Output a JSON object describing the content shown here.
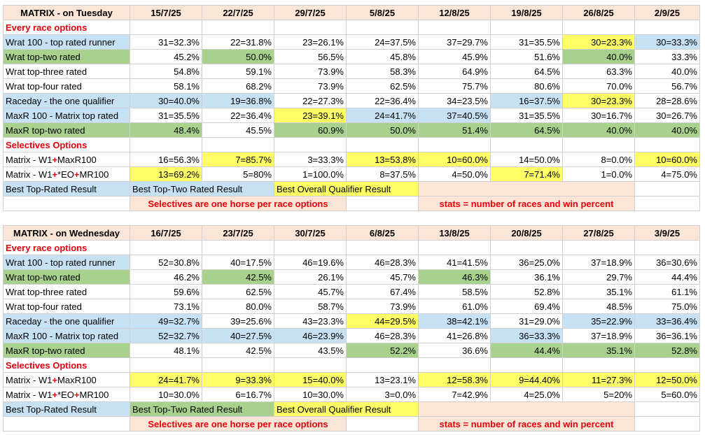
{
  "tables": [
    {
      "title": "MATRIX - on Tuesday",
      "dates": [
        "15/7/25",
        "22/7/25",
        "29/7/25",
        "5/8/25",
        "12/8/25",
        "19/8/25",
        "26/8/25",
        "2/9/25"
      ],
      "section1": "Every race options",
      "rows1": [
        {
          "label": "Wrat 100 - top rated runner",
          "labelColor": "blue",
          "cells": [
            [
              "31=32.3%",
              ""
            ],
            [
              "22=31.8%",
              ""
            ],
            [
              "23=26.1%",
              ""
            ],
            [
              "24=37.5%",
              ""
            ],
            [
              "37=29.7%",
              ""
            ],
            [
              "31=35.5%",
              ""
            ],
            [
              "30=23.3%",
              "yellow"
            ],
            [
              "30=33.3%",
              "blue"
            ]
          ]
        },
        {
          "label": "Wrat top-two rated",
          "labelColor": "green",
          "cells": [
            [
              "45.2%",
              ""
            ],
            [
              "50.0%",
              "green"
            ],
            [
              "56.5%",
              ""
            ],
            [
              "45.8%",
              ""
            ],
            [
              "45.9%",
              ""
            ],
            [
              "51.6%",
              ""
            ],
            [
              "40.0%",
              "green"
            ],
            [
              "33.3%",
              ""
            ]
          ]
        },
        {
          "label": "Wrat top-three rated",
          "labelColor": "",
          "cells": [
            [
              "54.8%",
              ""
            ],
            [
              "59.1%",
              ""
            ],
            [
              "73.9%",
              ""
            ],
            [
              "58.3%",
              ""
            ],
            [
              "64.9%",
              ""
            ],
            [
              "64.5%",
              ""
            ],
            [
              "63.3%",
              ""
            ],
            [
              "40.0%",
              ""
            ]
          ]
        },
        {
          "label": "Wrat top-four rated",
          "labelColor": "",
          "cells": [
            [
              "58.1%",
              ""
            ],
            [
              "68.2%",
              ""
            ],
            [
              "73.9%",
              ""
            ],
            [
              "62.5%",
              ""
            ],
            [
              "75.7%",
              ""
            ],
            [
              "80.6%",
              ""
            ],
            [
              "70.0%",
              ""
            ],
            [
              "56.7%",
              ""
            ]
          ]
        },
        {
          "label": "Raceday - the one qualifier",
          "labelColor": "blue",
          "cells": [
            [
              "30=40.0%",
              "blue"
            ],
            [
              "19=36.8%",
              "blue"
            ],
            [
              "22=27.3%",
              ""
            ],
            [
              "22=36.4%",
              ""
            ],
            [
              "34=23.5%",
              ""
            ],
            [
              "16=37.5%",
              "blue"
            ],
            [
              "30=23.3%",
              "yellow"
            ],
            [
              "28=28.6%",
              ""
            ]
          ]
        },
        {
          "label": "MaxR 100 - Matrix top rated",
          "labelColor": "blue",
          "cells": [
            [
              "31=35.5%",
              ""
            ],
            [
              "22=36.4%",
              ""
            ],
            [
              "23=39.1%",
              "yellow"
            ],
            [
              "24=41.7%",
              "blue"
            ],
            [
              "37=40.5%",
              "blue"
            ],
            [
              "31=35.5%",
              ""
            ],
            [
              "30=16.7%",
              ""
            ],
            [
              "30=26.7%",
              ""
            ]
          ]
        },
        {
          "label": "MaxR top-two rated",
          "labelColor": "green",
          "cells": [
            [
              "48.4%",
              "green"
            ],
            [
              "45.5%",
              ""
            ],
            [
              "60.9%",
              "green"
            ],
            [
              "50.0%",
              "green"
            ],
            [
              "51.4%",
              "green"
            ],
            [
              "64.5%",
              "green"
            ],
            [
              "40.0%",
              "green"
            ],
            [
              "40.0%",
              "green"
            ]
          ]
        }
      ],
      "section2": "Selectives Options",
      "rows2": [
        {
          "pre": "Matrix - W1",
          "mid": "+",
          "post": "MaxR100",
          "cells": [
            [
              "16=56.3%",
              ""
            ],
            [
              "7=85.7%",
              "yellow"
            ],
            [
              "3=33.3%",
              ""
            ],
            [
              "13=53.8%",
              "yellow"
            ],
            [
              "10=60.0%",
              "yellow"
            ],
            [
              "14=50.0%",
              ""
            ],
            [
              "8=0.0%",
              ""
            ],
            [
              "10=60.0%",
              "yellow"
            ]
          ]
        },
        {
          "pre": "Matrix - W1",
          "mid": "+",
          "post": "*EO",
          "mid2": "+",
          "post2": "MR100",
          "cells": [
            [
              "13=69.2%",
              "yellow"
            ],
            [
              "5=80%",
              ""
            ],
            [
              "1=100.0%",
              ""
            ],
            [
              "8=37.5%",
              ""
            ],
            [
              "4=50.0%",
              ""
            ],
            [
              "7=71.4%",
              "yellow"
            ],
            [
              "1=0.0%",
              ""
            ],
            [
              "4=75.0%",
              ""
            ]
          ]
        }
      ],
      "legend": {
        "top": "Best Top-Rated Result",
        "toptwo": "Best Top-Two Rated Result",
        "overall": "Best Overall Qualifier Result"
      },
      "note1": "Selectives are one horse per race options",
      "note2": "stats = number of races and win percent"
    },
    {
      "title": "MATRIX - on Wednesday",
      "dates": [
        "16/7/25",
        "23/7/25",
        "30/7/25",
        "6/8/25",
        "13/8/25",
        "20/8/25",
        "27/8/25",
        "3/9/25"
      ],
      "section1": "Every race options",
      "rows1": [
        {
          "label": "Wrat 100 - top rated runner",
          "labelColor": "blue",
          "cells": [
            [
              "52=30.8%",
              ""
            ],
            [
              "40=17.5%",
              ""
            ],
            [
              "46=19.6%",
              ""
            ],
            [
              "46=28.3%",
              ""
            ],
            [
              "41=41.5%",
              ""
            ],
            [
              "36=25.0%",
              ""
            ],
            [
              "37=18.9%",
              ""
            ],
            [
              "36=30.6%",
              ""
            ]
          ]
        },
        {
          "label": "Wrat top-two rated",
          "labelColor": "green",
          "cells": [
            [
              "46.2%",
              ""
            ],
            [
              "42.5%",
              "green"
            ],
            [
              "26.1%",
              ""
            ],
            [
              "45.7%",
              ""
            ],
            [
              "46.3%",
              "green"
            ],
            [
              "36.1%",
              ""
            ],
            [
              "29.7%",
              ""
            ],
            [
              "44.4%",
              ""
            ]
          ]
        },
        {
          "label": "Wrat top-three rated",
          "labelColor": "",
          "cells": [
            [
              "59.6%",
              ""
            ],
            [
              "62.5%",
              ""
            ],
            [
              "45.7%",
              ""
            ],
            [
              "67.4%",
              ""
            ],
            [
              "58.5%",
              ""
            ],
            [
              "52.8%",
              ""
            ],
            [
              "35.1%",
              ""
            ],
            [
              "61.1%",
              ""
            ]
          ]
        },
        {
          "label": "Wrat top-four rated",
          "labelColor": "",
          "cells": [
            [
              "73.1%",
              ""
            ],
            [
              "80.0%",
              ""
            ],
            [
              "58.7%",
              ""
            ],
            [
              "73.9%",
              ""
            ],
            [
              "61.0%",
              ""
            ],
            [
              "69.4%",
              ""
            ],
            [
              "48.5%",
              ""
            ],
            [
              "75.0%",
              ""
            ]
          ]
        },
        {
          "label": "Raceday - the one qualifier",
          "labelColor": "blue",
          "cells": [
            [
              "49=32.7%",
              "blue"
            ],
            [
              "39=25.6%",
              ""
            ],
            [
              "43=23.3%",
              ""
            ],
            [
              "44=29.5%",
              "yellow"
            ],
            [
              "38=42.1%",
              "blue"
            ],
            [
              "31=29.0%",
              ""
            ],
            [
              "35=22.9%",
              "blue"
            ],
            [
              "33=36.4%",
              "blue"
            ]
          ]
        },
        {
          "label": "MaxR 100 - Matrix top rated",
          "labelColor": "blue",
          "cells": [
            [
              "52=32.7%",
              "blue"
            ],
            [
              "40=27.5%",
              "blue"
            ],
            [
              "46=23.9%",
              "blue"
            ],
            [
              "46=28.3%",
              ""
            ],
            [
              "41=26.8%",
              ""
            ],
            [
              "36=33.3%",
              "blue"
            ],
            [
              "37=18.9%",
              ""
            ],
            [
              "36=36.1%",
              ""
            ]
          ]
        },
        {
          "label": "MaxR top-two rated",
          "labelColor": "green",
          "cells": [
            [
              "48.1%",
              ""
            ],
            [
              "42.5%",
              ""
            ],
            [
              "43.5%",
              ""
            ],
            [
              "52.2%",
              "green"
            ],
            [
              "36.6%",
              ""
            ],
            [
              "44.4%",
              "green"
            ],
            [
              "35.1%",
              "green"
            ],
            [
              "52.8%",
              "green"
            ]
          ]
        }
      ],
      "section2": "Selectives Options",
      "rows2": [
        {
          "pre": "Matrix - W1",
          "mid": "+",
          "post": "MaxR100",
          "cells": [
            [
              "24=41.7%",
              "yellow"
            ],
            [
              "9=33.3%",
              "yellow"
            ],
            [
              "15=40.0%",
              "yellow"
            ],
            [
              "13=23.1%",
              ""
            ],
            [
              "12=58.3%",
              "yellow"
            ],
            [
              "9=44.40%",
              "yellow"
            ],
            [
              "11=27.3%",
              "yellow"
            ],
            [
              "12=50.0%",
              "yellow"
            ]
          ]
        },
        {
          "pre": "Matrix - W1",
          "mid": "+",
          "post": "*EO",
          "mid2": "+",
          "post2": "MR100",
          "cells": [
            [
              "10=30.0%",
              ""
            ],
            [
              "6=16.7%",
              ""
            ],
            [
              "10=30.0%",
              ""
            ],
            [
              "3=0.0%",
              ""
            ],
            [
              "7=42.9%",
              ""
            ],
            [
              "4=25.0%",
              ""
            ],
            [
              "5=20%",
              ""
            ],
            [
              "5=60.0%",
              ""
            ]
          ]
        }
      ],
      "legend": {
        "top": "Best Top-Rated Result",
        "toptwo": "Best Top-Two Rated Result",
        "overall": "Best Overall Qualifier Result"
      },
      "note1": "Selectives are one horse per race options",
      "note2": "stats = number of races and win percent"
    }
  ]
}
